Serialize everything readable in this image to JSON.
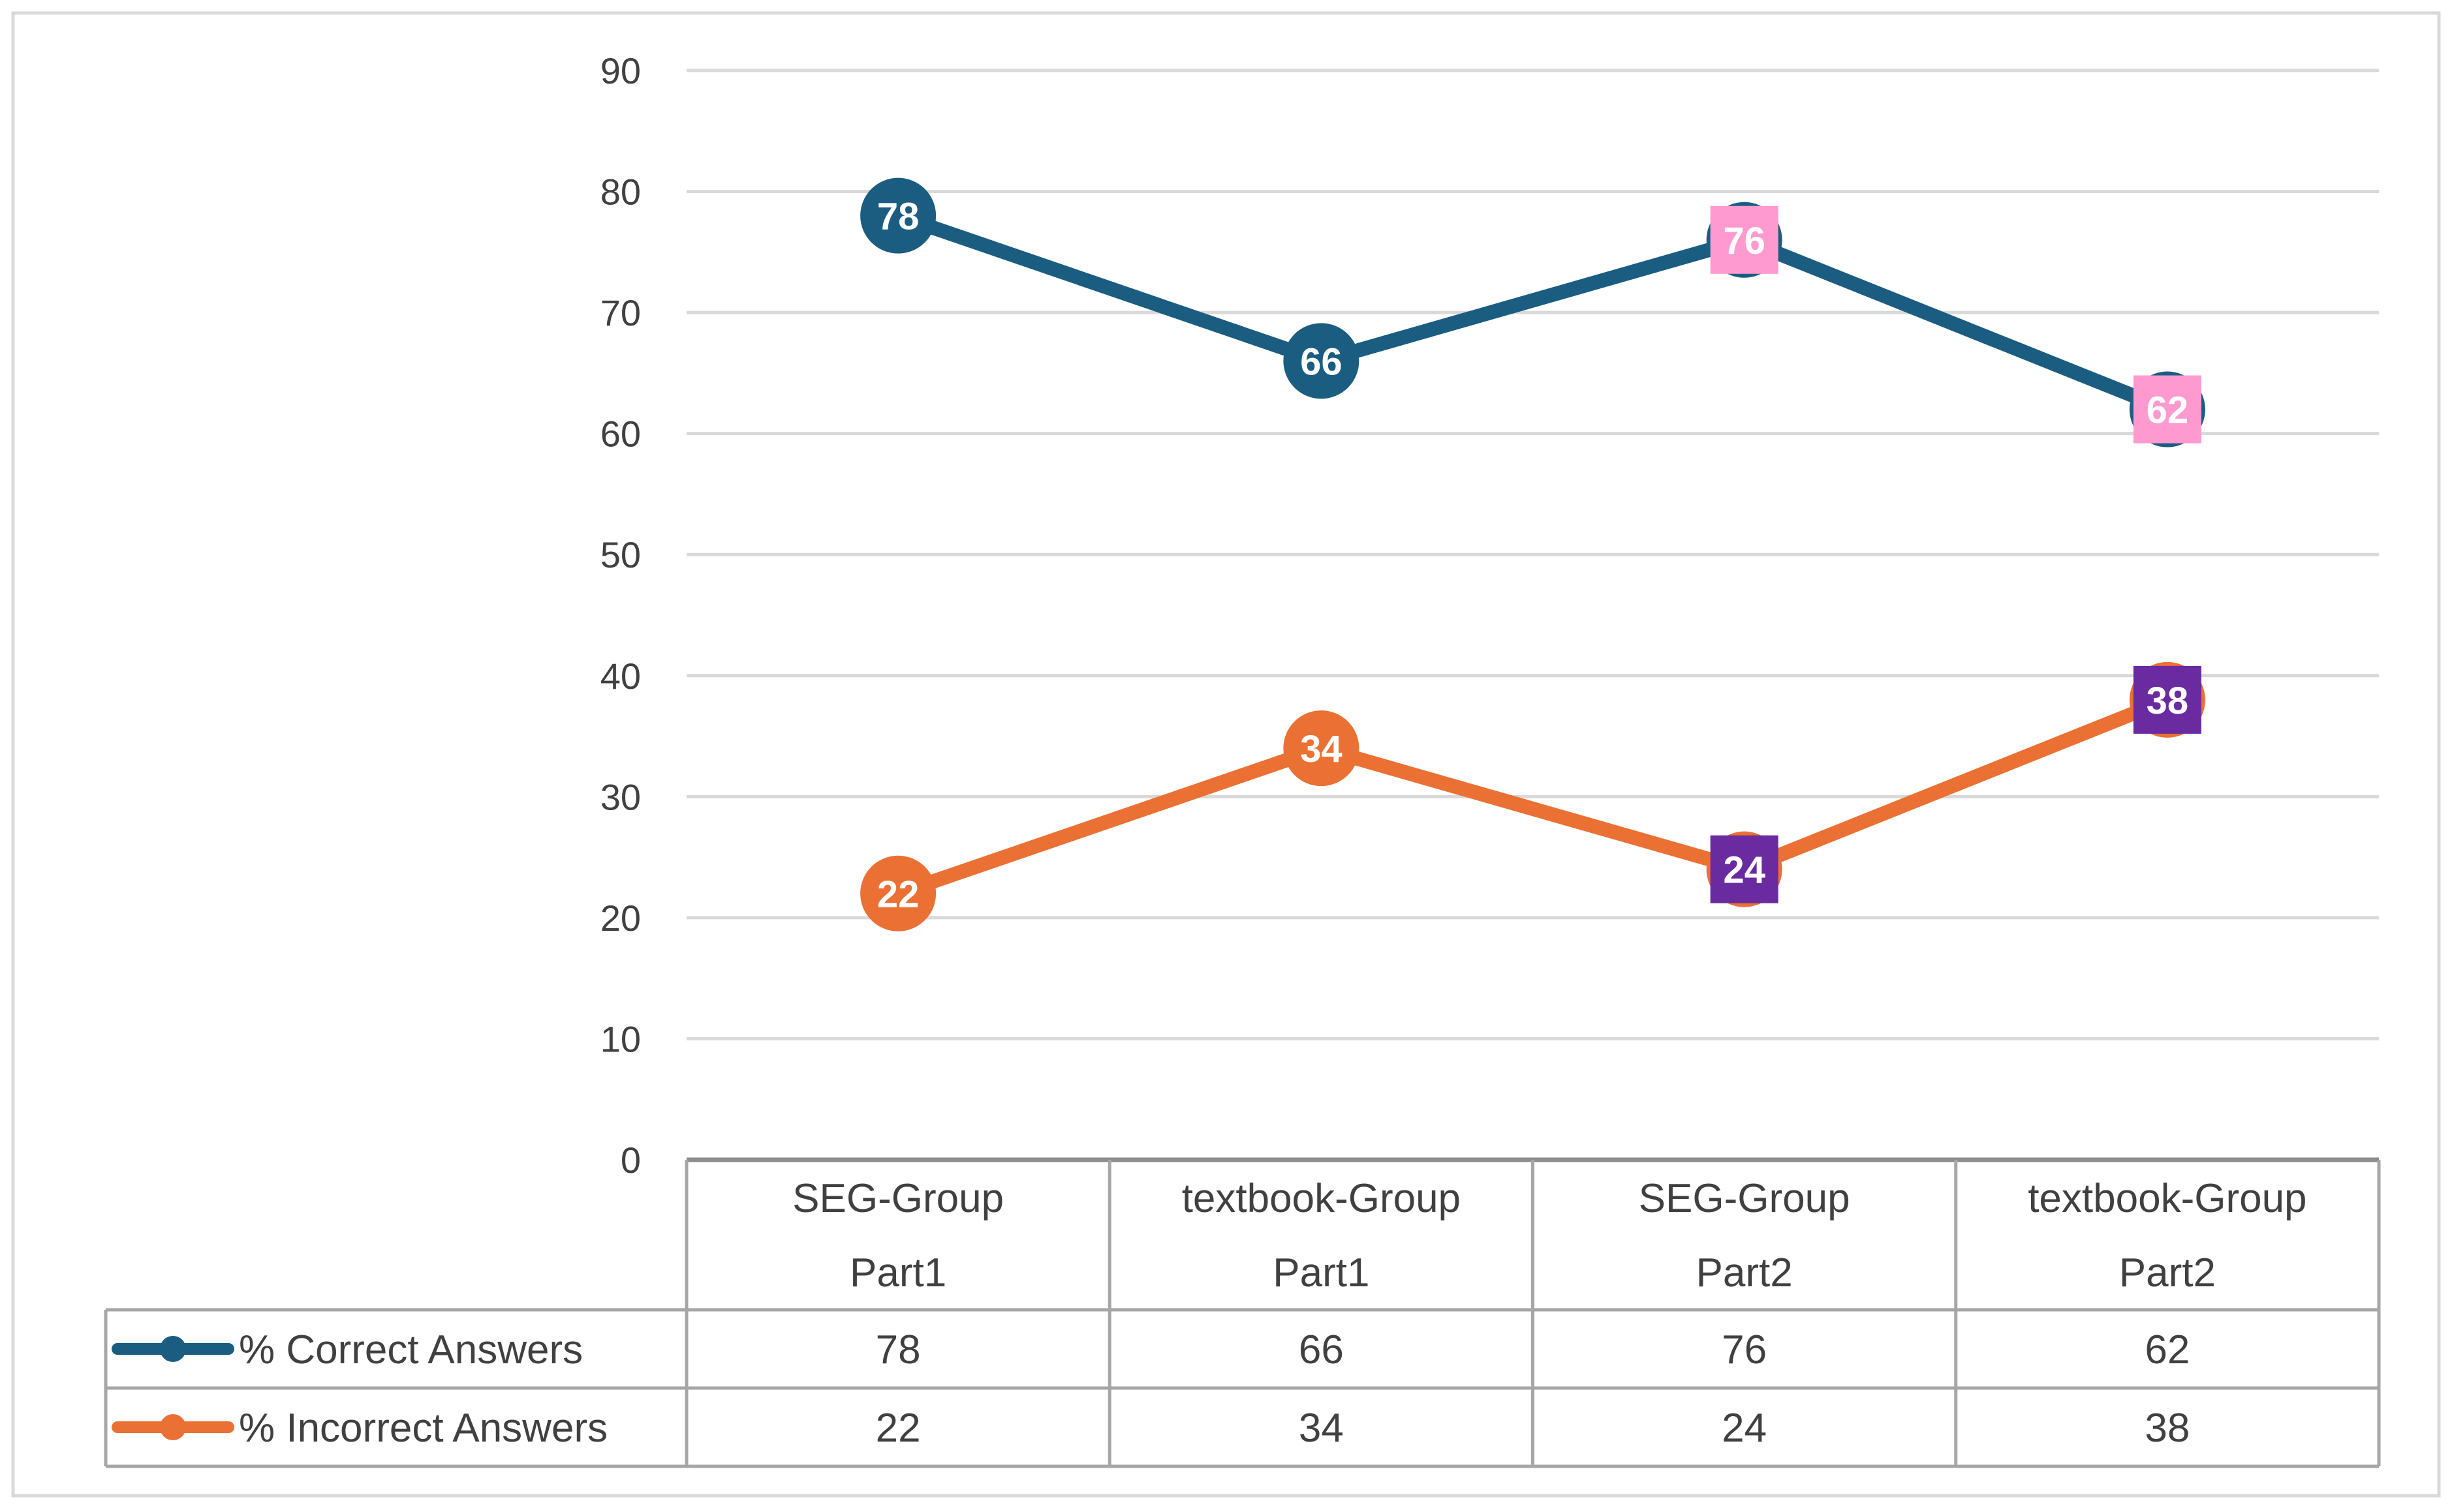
{
  "chart_data": {
    "type": "line",
    "title": "",
    "xlabel": "",
    "ylabel": "",
    "ylim": [
      0,
      90
    ],
    "y_ticks": [
      0,
      10,
      20,
      30,
      40,
      50,
      60,
      70,
      80,
      90
    ],
    "grid": true,
    "legend_placement": "data-table-bottom",
    "categories": [
      {
        "line1": "SEG-Group",
        "line2": "Part1"
      },
      {
        "line1": "textbook-Group",
        "line2": "Part1"
      },
      {
        "line1": "SEG-Group",
        "line2": "Part2"
      },
      {
        "line1": "textbook-Group",
        "line2": "Part2"
      }
    ],
    "series": [
      {
        "name": "% Correct Answers",
        "color": "#1a5d80",
        "values": [
          78,
          66,
          76,
          62
        ],
        "label_styles": [
          {
            "shape": "circle",
            "fill": "#1a5d80",
            "text": "#ffffff"
          },
          {
            "shape": "circle",
            "fill": "#1a5d80",
            "text": "#ffffff"
          },
          {
            "shape": "square",
            "fill": "#ff9ad0",
            "text": "#ffffff"
          },
          {
            "shape": "square",
            "fill": "#ff9ad0",
            "text": "#ffffff"
          }
        ]
      },
      {
        "name": "% Incorrect Answers",
        "color": "#ea7033",
        "values": [
          22,
          34,
          24,
          38
        ],
        "label_styles": [
          {
            "shape": "circle",
            "fill": "#ea7033",
            "text": "#ffffff"
          },
          {
            "shape": "circle",
            "fill": "#ea7033",
            "text": "#ffffff"
          },
          {
            "shape": "square",
            "fill": "#6a2aa0",
            "text": "#ffffff"
          },
          {
            "shape": "square",
            "fill": "#6a2aa0",
            "text": "#ffffff"
          }
        ]
      }
    ]
  }
}
